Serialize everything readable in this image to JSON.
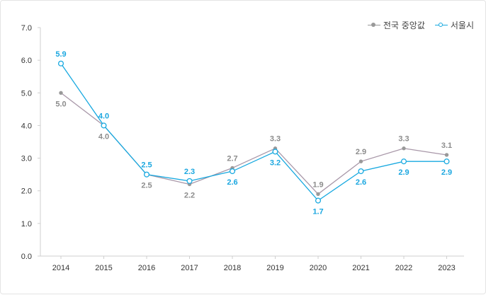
{
  "chart_data": {
    "type": "line",
    "categories": [
      "2014",
      "2015",
      "2016",
      "2017",
      "2018",
      "2019",
      "2020",
      "2021",
      "2022",
      "2023"
    ],
    "series": [
      {
        "name": "전국 중앙값",
        "values": [
          5.0,
          4.0,
          2.5,
          2.2,
          2.7,
          3.3,
          1.9,
          2.9,
          3.3,
          3.1
        ],
        "color": "#999999",
        "line_color": "#a897a8",
        "marker": "filled",
        "label_color": "#8c8c8c",
        "label_positions": [
          "below",
          "below",
          "below",
          "below",
          "above",
          "above",
          "above",
          "above",
          "above",
          "above"
        ]
      },
      {
        "name": "서울시",
        "values": [
          5.9,
          4.0,
          2.5,
          2.3,
          2.6,
          3.2,
          1.7,
          2.6,
          2.9,
          2.9
        ],
        "color": "#18a9e0",
        "line_color": "#18a9e0",
        "marker": "hollow",
        "label_color": "#1ba7e0",
        "label_positions": [
          "above",
          "above",
          "above",
          "above",
          "below",
          "below",
          "below",
          "below",
          "below",
          "below"
        ]
      }
    ],
    "y_ticks": [
      "0.0",
      "1.0",
      "2.0",
      "3.0",
      "4.0",
      "5.0",
      "6.0",
      "7.0"
    ],
    "ylim": [
      0,
      7
    ],
    "grid": false,
    "legend": "top-right"
  }
}
